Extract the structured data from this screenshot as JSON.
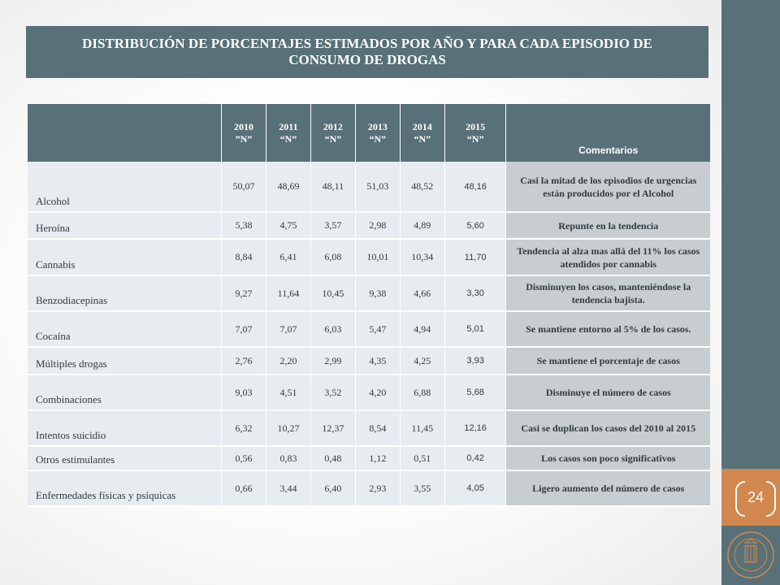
{
  "title": "DISTRIBUCIÓN DE PORCENTAJES ESTIMADOS POR AÑO Y PARA CADA EPISODIO DE CONSUMO DE DROGAS",
  "page_number": "24",
  "colors": {
    "accent": "#587078",
    "sidebar_highlight": "#d1874d",
    "row_bg": "#e7ecf1",
    "comment_bg": "#c7cdd1"
  },
  "table": {
    "headers": [
      {
        "year": "2010",
        "n": "”N”"
      },
      {
        "year": "2011",
        "n": "“N”"
      },
      {
        "year": "2012",
        "n": "“N”"
      },
      {
        "year": "2013",
        "n": "“N”"
      },
      {
        "year": "2014",
        "n": "“N”"
      },
      {
        "year": "2015",
        "n": "“N”"
      }
    ],
    "comments_header": "Comentarios",
    "rows": [
      {
        "label": "Alcohol",
        "values": [
          "50,07",
          "48,69",
          "48,11",
          "51,03",
          "48,52",
          "48,16"
        ],
        "comment": "Casi la mitad de los episodios de urgencias están producidos por el Alcohol"
      },
      {
        "label": "Heroína",
        "values": [
          "5,38",
          "4,75",
          "3,57",
          "2,98",
          "4,89",
          "5,60"
        ],
        "comment": "Repunte en la tendencia"
      },
      {
        "label": "Cannabis",
        "values": [
          "8,84",
          "6,41",
          "6,08",
          "10,01",
          "10,34",
          "11,70"
        ],
        "comment": "Tendencia al alza mas allá del 11% los casos atendidos por cannabis"
      },
      {
        "label": "Benzodiacepinas",
        "values": [
          "9,27",
          "11,64",
          "10,45",
          "9,38",
          "4,66",
          "3,30"
        ],
        "comment": "Disminuyen los casos, manteniéndose la tendencia bajista."
      },
      {
        "label": "Cocaína",
        "values": [
          "7,07",
          "7,07",
          "6,03",
          "5,47",
          "4,94",
          "5,01"
        ],
        "comment": "Se mantiene entorno al 5% de los casos."
      },
      {
        "label": "Múltiples drogas",
        "values": [
          "2,76",
          "2,20",
          "2,99",
          "4,35",
          "4,25",
          "3,93"
        ],
        "comment": "Se mantiene el porcentaje de casos"
      },
      {
        "label": "Combinaciones",
        "values": [
          "9,03",
          "4,51",
          "3,52",
          "4,20",
          "6,88",
          "5,68"
        ],
        "comment": "Disminuye el número de casos"
      },
      {
        "label": "Intentos suicidio",
        "values": [
          "6,32",
          "10,27",
          "12,37",
          "8,54",
          "11,45",
          "12,16"
        ],
        "comment": "Casi se duplican los casos del 2010 al 2015"
      },
      {
        "label": "Otros estimulantes",
        "values": [
          "0,56",
          "0,83",
          "0,48",
          "1,12",
          "0,51",
          "0,42"
        ],
        "comment": "Los casos son poco significativos"
      },
      {
        "label": "Enfermedades físicas y psíquicas",
        "values": [
          "0,66",
          "3,44",
          "6,40",
          "2,93",
          "3,55",
          "4,05"
        ],
        "comment": "Ligero aumento del número de casos"
      }
    ]
  }
}
